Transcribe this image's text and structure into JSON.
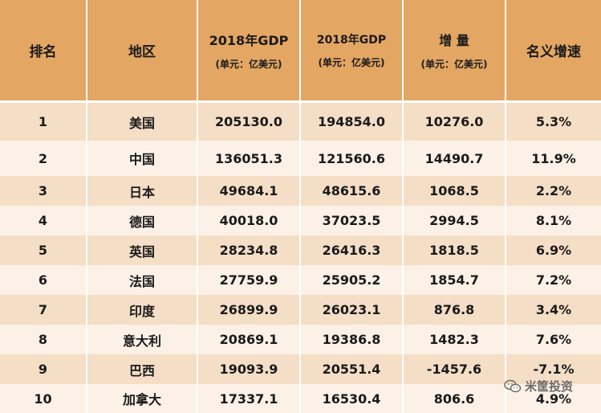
{
  "headers": {
    "rank": "排名",
    "region": "地区",
    "gdp2018_main": "2018年GDP",
    "gdp2018_unit": "(单元：亿美元)",
    "gdp2018b_main": "2018年GDP",
    "gdp2018b_unit": "(单元：亿美元)",
    "increase_main": "增 量",
    "increase_unit": "(单元：亿美元)",
    "growth": "名义增速"
  },
  "rows": [
    {
      "rank": "1",
      "region": "美国",
      "gdp_a": "205130.0",
      "gdp_b": "194854.0",
      "increase": "10276.0",
      "growth": "5.3%"
    },
    {
      "rank": "2",
      "region": "中国",
      "gdp_a": "136051.3",
      "gdp_b": "121560.6",
      "increase": "14490.7",
      "growth": "11.9%"
    },
    {
      "rank": "3",
      "region": "日本",
      "gdp_a": "49684.1",
      "gdp_b": "48615.6",
      "increase": "1068.5",
      "growth": "2.2%"
    },
    {
      "rank": "4",
      "region": "德国",
      "gdp_a": "40018.0",
      "gdp_b": "37023.5",
      "increase": "2994.5",
      "growth": "8.1%"
    },
    {
      "rank": "5",
      "region": "英国",
      "gdp_a": "28234.8",
      "gdp_b": "26416.3",
      "increase": "1818.5",
      "growth": "6.9%"
    },
    {
      "rank": "6",
      "region": "法国",
      "gdp_a": "27759.9",
      "gdp_b": "25905.2",
      "increase": "1854.7",
      "growth": "7.2%"
    },
    {
      "rank": "7",
      "region": "印度",
      "gdp_a": "26899.9",
      "gdp_b": "26023.1",
      "increase": "876.8",
      "growth": "3.4%"
    },
    {
      "rank": "8",
      "region": "意大利",
      "gdp_a": "20869.1",
      "gdp_b": "19386.8",
      "increase": "1482.3",
      "growth": "7.6%"
    },
    {
      "rank": "9",
      "region": "巴西",
      "gdp_a": "19093.9",
      "gdp_b": "20551.4",
      "increase": "-1457.6",
      "growth": "-7.1%"
    },
    {
      "rank": "10",
      "region": "加拿大",
      "gdp_a": "17337.1",
      "gdp_b": "16530.4",
      "increase": "806.6",
      "growth": "4.9%"
    }
  ],
  "watermark": {
    "text": "米筐投资",
    "icon": "wechat-icon"
  },
  "colors": {
    "header_bg": "#e3a663",
    "row_odd_bg": "#f5dec6",
    "row_even_bg": "#fbf1e6"
  }
}
